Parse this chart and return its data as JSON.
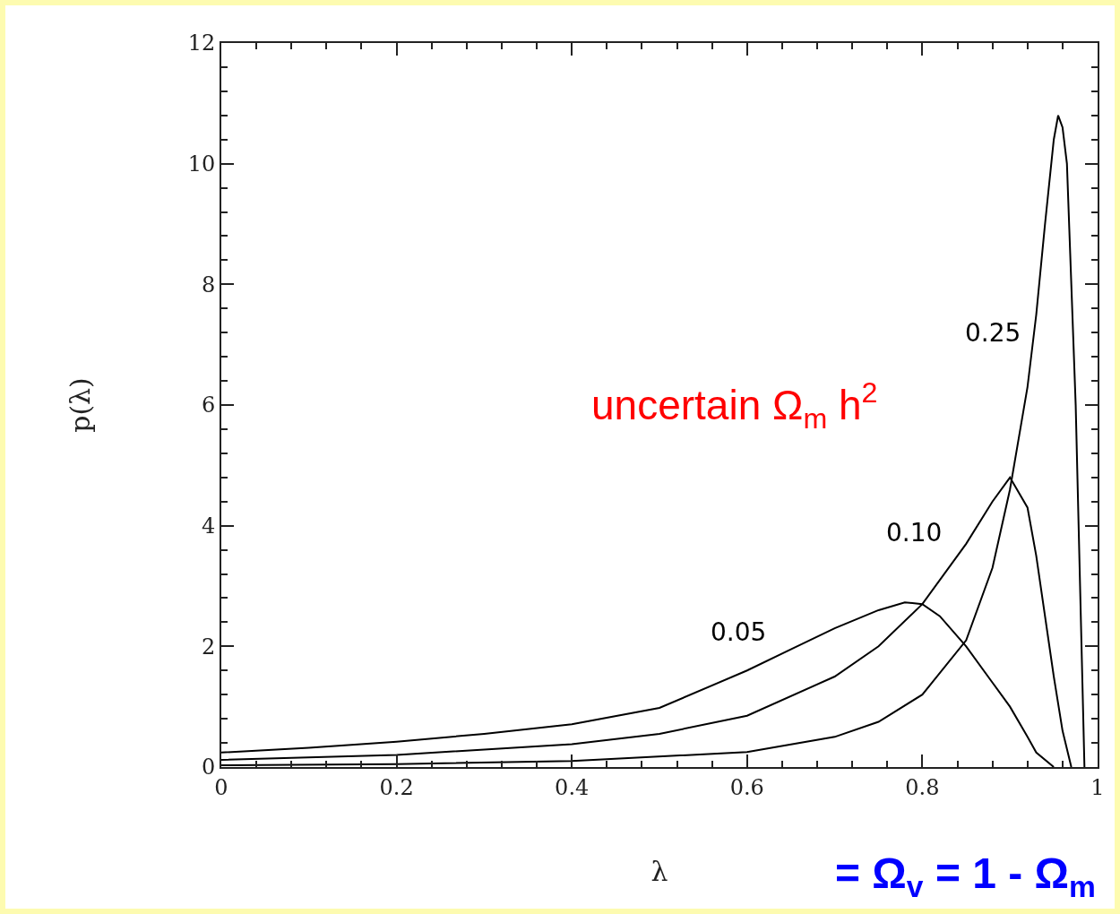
{
  "chart_data": {
    "type": "line",
    "xlabel": "λ",
    "ylabel": "p(λ)",
    "xlim": [
      0,
      1
    ],
    "xticks": [
      0,
      0.2,
      0.4,
      0.6,
      0.8,
      1
    ],
    "ylim": [
      0,
      12
    ],
    "yticks": [
      0,
      2,
      4,
      6,
      8,
      10,
      12
    ],
    "grid": false,
    "legend": false,
    "marker": "none",
    "line_style": "solid",
    "series": [
      {
        "name": "0.05",
        "color": "#000000",
        "x": [
          0,
          0.1,
          0.2,
          0.3,
          0.4,
          0.5,
          0.6,
          0.65,
          0.7,
          0.75,
          0.78,
          0.8,
          0.82,
          0.85,
          0.88,
          0.9,
          0.92,
          0.93,
          0.95
        ],
        "values": [
          0.24,
          0.32,
          0.42,
          0.55,
          0.71,
          0.98,
          1.6,
          1.95,
          2.3,
          2.6,
          2.73,
          2.7,
          2.5,
          2.0,
          1.4,
          1.0,
          0.5,
          0.24,
          0
        ]
      },
      {
        "name": "0.10",
        "color": "#000000",
        "x": [
          0,
          0.2,
          0.4,
          0.5,
          0.6,
          0.7,
          0.75,
          0.8,
          0.85,
          0.88,
          0.9,
          0.92,
          0.93,
          0.95,
          0.96,
          0.97
        ],
        "values": [
          0.12,
          0.2,
          0.38,
          0.55,
          0.85,
          1.5,
          2.0,
          2.7,
          3.7,
          4.4,
          4.8,
          4.3,
          3.5,
          1.5,
          0.6,
          0
        ]
      },
      {
        "name": "0.25",
        "color": "#000000",
        "x": [
          0,
          0.2,
          0.4,
          0.6,
          0.7,
          0.75,
          0.8,
          0.85,
          0.88,
          0.9,
          0.92,
          0.93,
          0.94,
          0.95,
          0.955,
          0.96,
          0.965,
          0.97,
          0.975,
          0.98,
          0.985
        ],
        "values": [
          0.03,
          0.05,
          0.1,
          0.25,
          0.5,
          0.75,
          1.2,
          2.1,
          3.3,
          4.6,
          6.3,
          7.5,
          9.0,
          10.4,
          10.8,
          10.6,
          10.0,
          8.0,
          6.0,
          3.0,
          0
        ]
      }
    ],
    "annotations": [
      "uncertain Ω$_{m}$ h$^{2}$",
      "= Ω$_{v}$ = 1 - Ω$_{m}$"
    ]
  }
}
